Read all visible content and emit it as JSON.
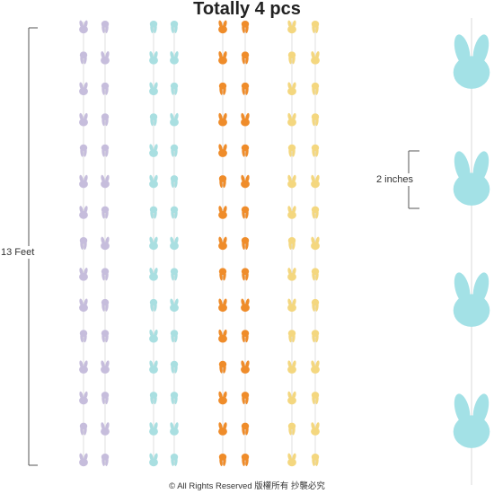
{
  "heading": "Totally 4 pcs",
  "length_label": "13 Feet",
  "size_label": "2 inches",
  "footer": "© All Rights Reserved 版權所有 抄襲必究",
  "colors": {
    "lavender": "#c6bddc",
    "mint": "#a9dfe1",
    "orange": "#ef8c2a",
    "yellow": "#f4d77f",
    "large_mint": "#a3e1e6",
    "string": "#d8d8d8"
  },
  "garland_count": 4,
  "icon_name": "bunny-head-icon"
}
